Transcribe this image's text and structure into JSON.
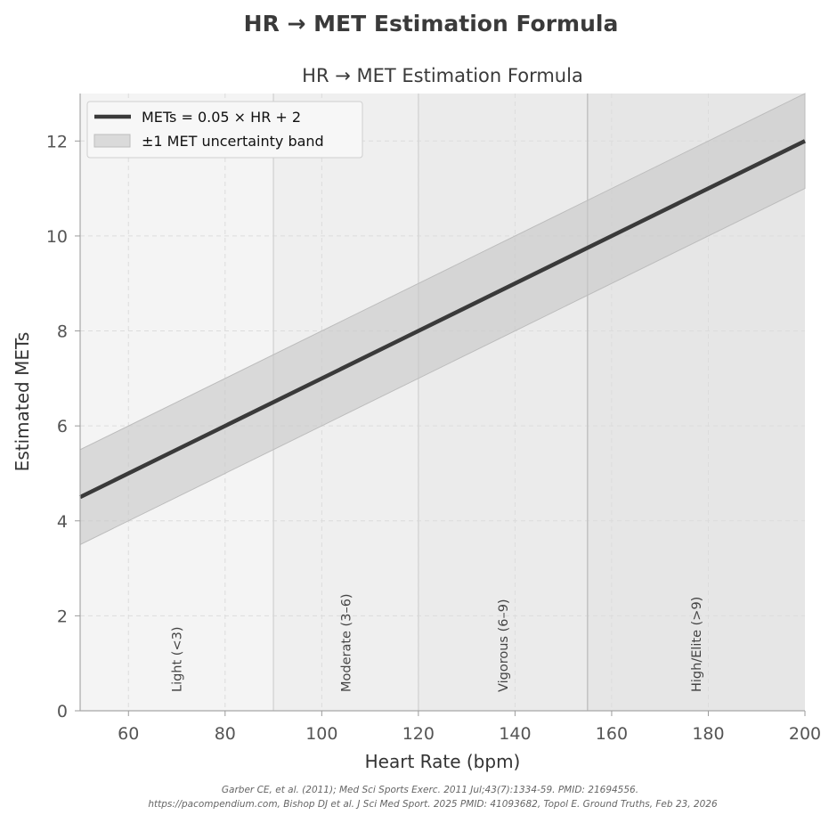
{
  "figure": {
    "suptitle": "HR → MET Estimation Formula",
    "footnote_lines": [
      "Garber CE, et al. (2011);  Med Sci Sports Exerc. 2011 Jul;43(7):1334-59. PMID: 21694556.",
      "https://pacompendium.com, Bishop DJ et al. J Sci Med Sport. 2025 PMID: 41093682, Topol E. Ground Truths, Feb 23, 2026"
    ]
  },
  "chart_data": {
    "type": "line",
    "title": "HR → MET Estimation Formula",
    "xlabel": "Heart Rate (bpm)",
    "ylabel": "Estimated METs",
    "xlim": [
      50,
      200
    ],
    "ylim": [
      0,
      13
    ],
    "xticks": [
      60,
      80,
      100,
      120,
      140,
      160,
      180,
      200
    ],
    "yticks": [
      0,
      2,
      4,
      6,
      8,
      10,
      12
    ],
    "grid": true,
    "legend_position": "upper-left",
    "series": [
      {
        "name": "METs = 0.05 × HR + 2",
        "x": [
          50,
          200
        ],
        "y": [
          4.5,
          12.0
        ],
        "color": "#3a3a3a"
      }
    ],
    "band": {
      "name": "±1 MET uncertainty band",
      "x": [
        50,
        200
      ],
      "lower": [
        3.5,
        11.0
      ],
      "upper": [
        5.5,
        13.0
      ],
      "color": "#c8c8c8"
    },
    "zones": [
      {
        "label": "Light (<3)",
        "x_start": 50,
        "x_end": 90,
        "color": "#f4f4f4"
      },
      {
        "label": "Moderate (3–6)",
        "x_start": 90,
        "x_end": 120,
        "color": "#efefef"
      },
      {
        "label": "Vigorous (6–9)",
        "x_start": 120,
        "x_end": 155,
        "color": "#ebebeb"
      },
      {
        "label": "High/Elite (>9)",
        "x_start": 155,
        "x_end": 200,
        "color": "#e6e6e6"
      }
    ],
    "zone_boundaries": [
      90,
      120,
      155
    ]
  }
}
